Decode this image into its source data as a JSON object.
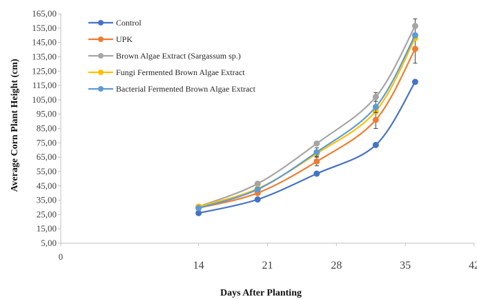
{
  "chart_data": {
    "type": "line",
    "xlabel": "Days After Planting",
    "ylabel": "Average Corn Plant Height (cm)",
    "xlim": [
      0,
      42
    ],
    "ylim": [
      5,
      165
    ],
    "x_ticks": [
      0,
      14,
      21,
      28,
      35,
      42
    ],
    "x_tick_labels": [
      "0",
      "14",
      "21",
      "28",
      "35",
      "42"
    ],
    "y_ticks": [
      5,
      15,
      25,
      35,
      45,
      55,
      65,
      75,
      85,
      95,
      105,
      115,
      125,
      135,
      145,
      155,
      165
    ],
    "y_tick_labels": [
      "5,00",
      "15,00",
      "25,00",
      "35,00",
      "45,00",
      "55,00",
      "65,00",
      "75,00",
      "85,00",
      "95,00",
      "105,00",
      "115,00",
      "125,00",
      "135,00",
      "145,00",
      "155,00",
      "165,00"
    ],
    "grid": false,
    "legend": "top-left",
    "x": [
      14,
      20,
      26,
      32,
      36
    ],
    "series": [
      {
        "name": "Control",
        "color": "#4472C4",
        "values": [
          26,
          35.5,
          53.5,
          73.5,
          117.5
        ],
        "errors": [
          0,
          0,
          0,
          0,
          0
        ]
      },
      {
        "name": "UPK",
        "color": "#ED7D31",
        "values": [
          29.5,
          40,
          62,
          91,
          140.5
        ],
        "errors": [
          0,
          0,
          3,
          6,
          10
        ]
      },
      {
        "name": "Brown Algae Extract (Sargassum sp.)",
        "color": "#A5A5A5",
        "values": [
          30.5,
          46.5,
          74.5,
          107,
          156.5
        ],
        "errors": [
          0,
          0,
          0,
          3,
          5
        ]
      },
      {
        "name": "Fungi Fermented Brown Algae Extract",
        "color": "#FFC000",
        "values": [
          30.5,
          43,
          67.5,
          97,
          148
        ],
        "errors": [
          0,
          0,
          0,
          0,
          0
        ]
      },
      {
        "name": "Bacterial Fermented Brown Algae Extract",
        "color": "#5B9BD5",
        "values": [
          29.5,
          42.5,
          68.5,
          100,
          150
        ],
        "errors": [
          0,
          0,
          3,
          4,
          0
        ]
      }
    ]
  }
}
